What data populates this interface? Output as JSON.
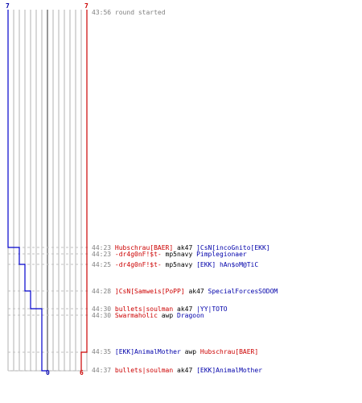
{
  "scores": {
    "blue_start": "7",
    "red_start": "7",
    "blue_end": "0",
    "red_end": "6"
  },
  "colors": {
    "blue": "#0000cc",
    "red": "#cc0000",
    "grid": "#b0b0b0",
    "dash": "#c0c0c0"
  },
  "events": [
    {
      "time": "43:56",
      "text": "round started"
    },
    {
      "time": "44:23",
      "killer": "Hubschrau[BAER]",
      "killer_team": "red",
      "weapon": "ak47",
      "victim": "]CsN[incoGnito[EKK]",
      "victim_team": "blue"
    },
    {
      "time": "44:23",
      "killer": "-dr4g0nF!$t-",
      "killer_team": "red",
      "weapon": "mp5navy",
      "victim": "Pimplegionaer",
      "victim_team": "blue"
    },
    {
      "time": "44:25",
      "killer": "-dr4g0nF!$t-",
      "killer_team": "red",
      "weapon": "mp5navy",
      "victim": "[EKK] hAn$oM@TiC",
      "victim_team": "blue"
    },
    {
      "time": "44:28",
      "killer": "]CsN[Samweis[PoPP]",
      "killer_team": "red",
      "weapon": "ak47",
      "victim": "SpecialForcesSODOM",
      "victim_team": "blue"
    },
    {
      "time": "44:30",
      "killer": "bullets|soulman",
      "killer_team": "red",
      "weapon": "ak47",
      "victim": "|YY|TOTO",
      "victim_team": "blue"
    },
    {
      "time": "44:30",
      "killer": "Swarmaholic",
      "killer_team": "red",
      "weapon": "awp",
      "victim": "Dragoon",
      "victim_team": "blue"
    },
    {
      "time": "44:35",
      "killer": "[EKK]AnimalMother",
      "killer_team": "blue",
      "weapon": "awp",
      "victim": "Hubschrau[BAER]",
      "victim_team": "red"
    },
    {
      "time": "44:37",
      "killer": "bullets|soulman",
      "killer_team": "red",
      "weapon": "ak47",
      "victim": "[EKK]AnimalMother",
      "victim_team": "blue"
    }
  ]
}
